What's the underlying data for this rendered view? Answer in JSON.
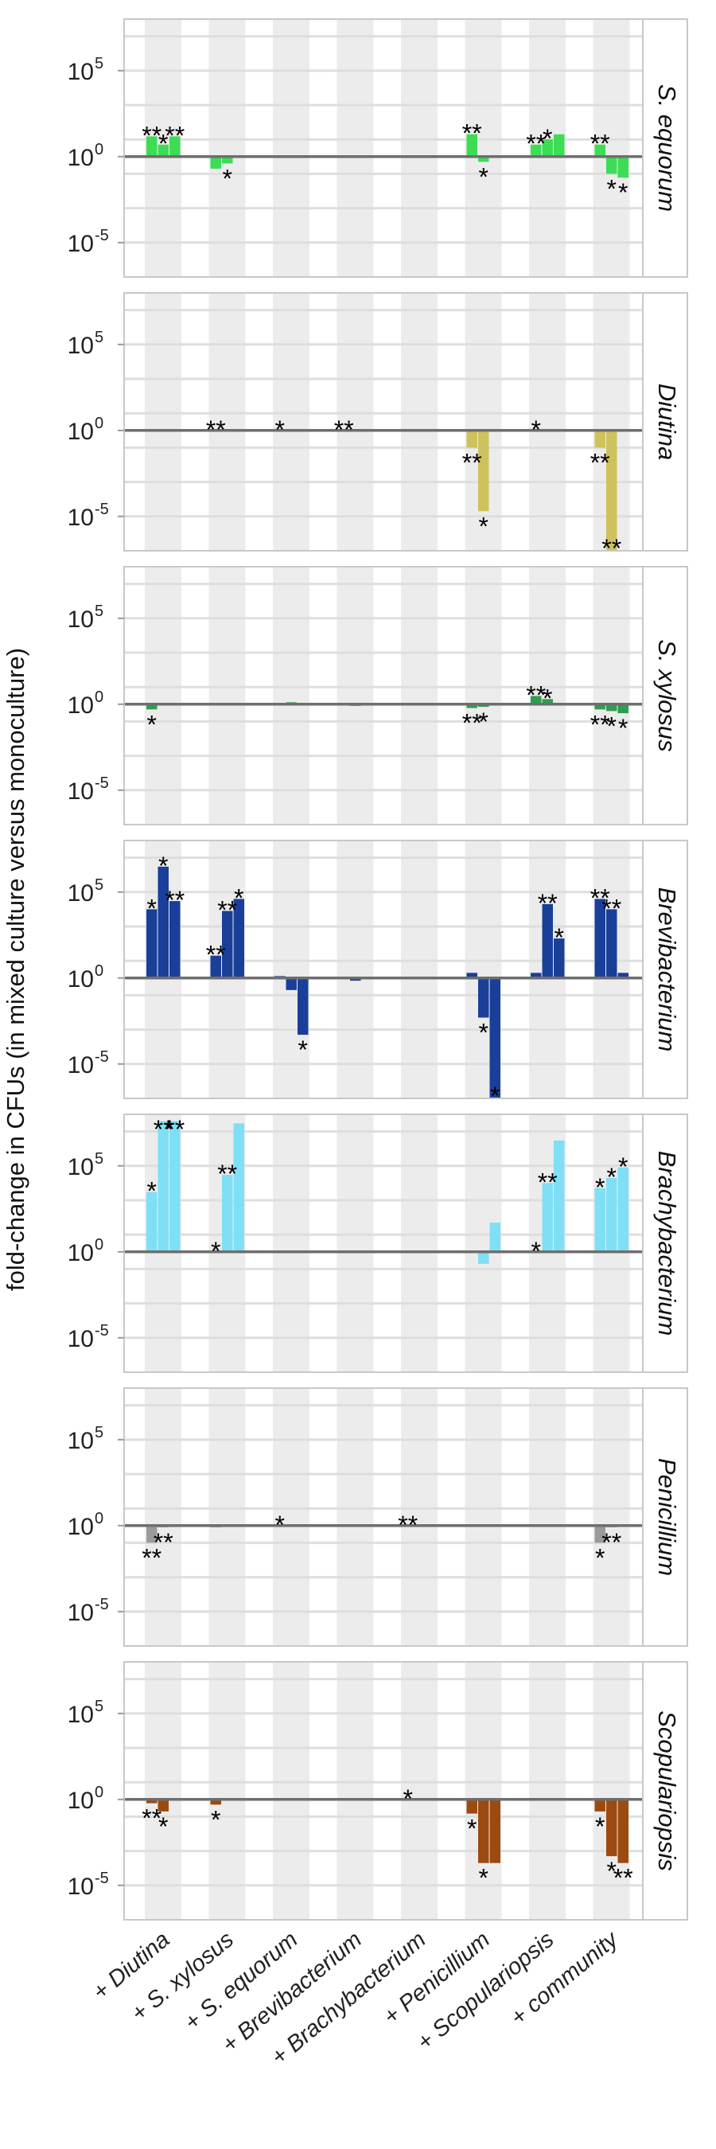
{
  "chart_data": {
    "type": "bar",
    "ylabel": "fold-change in CFUs (in mixed culture versus monoculture)",
    "y_scale": "log10",
    "ylim": [
      1e-07,
      100000000
    ],
    "yticks": [
      {
        "value": 1e-05,
        "base": "10",
        "exp": "-5"
      },
      {
        "value": 1,
        "base": "10",
        "exp": "0"
      },
      {
        "value": 100000,
        "base": "10",
        "exp": "5"
      }
    ],
    "categories": [
      "+ Diutina",
      "+ S. xylosus",
      "+ S. equorum",
      "+ Brevibacterium",
      "+ Brachybacterium",
      "+ Penicillium",
      "+ Scopulariopsis",
      "+ community"
    ],
    "panels": [
      {
        "name": "S. equorum",
        "color": "#3ddc55",
        "values": [
          [
            15,
            5,
            15
          ],
          [
            0.2,
            0.4,
            null
          ],
          [
            null,
            null,
            null
          ],
          [
            null,
            1.15,
            null
          ],
          [
            null,
            null,
            null
          ],
          [
            20,
            0.5,
            null
          ],
          [
            5,
            10,
            20
          ],
          [
            5,
            0.1,
            0.06
          ]
        ],
        "sig": [
          [
            "**",
            "*",
            "**"
          ],
          [
            "",
            "*",
            ""
          ],
          [
            "",
            "",
            ""
          ],
          [
            "",
            "",
            ""
          ],
          [
            "",
            "",
            ""
          ],
          [
            "**",
            "*",
            ""
          ],
          [
            "**",
            "*",
            ""
          ],
          [
            "**",
            "*",
            "*"
          ]
        ]
      },
      {
        "name": "Diutina",
        "color": "#cfc25d",
        "values": [
          [
            null,
            null,
            null
          ],
          [
            null,
            null,
            null
          ],
          [
            null,
            null,
            null
          ],
          [
            null,
            null,
            null
          ],
          [
            null,
            null,
            null
          ],
          [
            0.1,
            2e-05,
            null
          ],
          [
            null,
            null,
            null
          ],
          [
            0.1,
            1e-07,
            null
          ]
        ],
        "sig": [
          [
            "",
            "",
            ""
          ],
          [
            "**",
            "",
            ""
          ],
          [
            "*",
            "",
            ""
          ],
          [
            "**",
            "",
            ""
          ],
          [
            "",
            "",
            ""
          ],
          [
            "**",
            "*",
            ""
          ],
          [
            "*",
            "",
            ""
          ],
          [
            "**",
            "**",
            ""
          ]
        ]
      },
      {
        "name": "S. xylosus",
        "color": "#2e9e50",
        "values": [
          [
            0.5,
            null,
            null
          ],
          [
            null,
            null,
            null
          ],
          [
            null,
            1.3,
            null
          ],
          [
            null,
            0.8,
            null
          ],
          [
            null,
            null,
            null
          ],
          [
            0.6,
            0.7,
            null
          ],
          [
            3,
            2,
            null
          ],
          [
            0.5,
            0.4,
            0.3
          ]
        ],
        "sig": [
          [
            "*",
            "",
            ""
          ],
          [
            "",
            "",
            ""
          ],
          [
            "",
            "",
            ""
          ],
          [
            "",
            "",
            ""
          ],
          [
            "",
            "",
            ""
          ],
          [
            "**",
            "*",
            ""
          ],
          [
            "**",
            "*",
            ""
          ],
          [
            "**",
            "*",
            "*"
          ]
        ]
      },
      {
        "name": "Brevibacterium",
        "color": "#1a3f99",
        "values": [
          [
            10000,
            3000000,
            30000
          ],
          [
            20,
            8000,
            40000
          ],
          [
            1.3,
            0.2,
            0.0005
          ],
          [
            null,
            0.7,
            null
          ],
          [
            null,
            null,
            null
          ],
          [
            2,
            0.005,
            1e-07
          ],
          [
            2,
            20000,
            200
          ],
          [
            40000,
            10000,
            2
          ]
        ],
        "sig": [
          [
            "*",
            "*",
            "**"
          ],
          [
            "**",
            "**",
            "*"
          ],
          [
            "",
            "",
            "*"
          ],
          [
            "",
            "",
            ""
          ],
          [
            "",
            "",
            ""
          ],
          [
            "",
            "*",
            "*"
          ],
          [
            "",
            "**",
            "*"
          ],
          [
            "**",
            "**",
            ""
          ]
        ]
      },
      {
        "name": "Brachybacterium",
        "color": "#7fdff5",
        "values": [
          [
            3000,
            40000000,
            40000000
          ],
          [
            null,
            30000,
            30000000
          ],
          [
            null,
            1.2,
            null
          ],
          [
            null,
            1.2,
            null
          ],
          [
            null,
            null,
            null
          ],
          [
            null,
            0.2,
            50
          ],
          [
            null,
            10000,
            3000000
          ],
          [
            5000,
            20000,
            80000
          ]
        ],
        "sig": [
          [
            "*",
            "**",
            "**"
          ],
          [
            "*",
            "**",
            ""
          ],
          [
            "",
            "",
            ""
          ],
          [
            "",
            "",
            ""
          ],
          [
            "",
            "",
            ""
          ],
          [
            "",
            "",
            ""
          ],
          [
            "*",
            "**",
            ""
          ],
          [
            "*",
            "*",
            "*"
          ]
        ]
      },
      {
        "name": "Penicillium",
        "color": "#9b9b9b",
        "values": [
          [
            0.1,
            0.8,
            null
          ],
          [
            0.8,
            null,
            null
          ],
          [
            null,
            null,
            null
          ],
          [
            null,
            null,
            null
          ],
          [
            null,
            null,
            null
          ],
          [
            null,
            null,
            null
          ],
          [
            null,
            null,
            null
          ],
          [
            0.1,
            0.8,
            null
          ]
        ],
        "sig": [
          [
            "**",
            "**",
            ""
          ],
          [
            "",
            "",
            ""
          ],
          [
            "*",
            "",
            ""
          ],
          [
            "",
            "",
            ""
          ],
          [
            "**",
            "",
            ""
          ],
          [
            "",
            "",
            ""
          ],
          [
            "",
            "",
            ""
          ],
          [
            "*",
            "**",
            ""
          ]
        ]
      },
      {
        "name": "Scopulariopsis",
        "color": "#9c4a10",
        "values": [
          [
            0.6,
            0.2,
            null
          ],
          [
            0.5,
            null,
            null
          ],
          [
            null,
            null,
            null
          ],
          [
            null,
            null,
            null
          ],
          [
            null,
            null,
            null
          ],
          [
            0.15,
            0.0002,
            0.0002
          ],
          [
            null,
            null,
            null
          ],
          [
            0.2,
            0.0005,
            0.0002
          ]
        ],
        "sig": [
          [
            "**",
            "*",
            ""
          ],
          [
            "*",
            "",
            ""
          ],
          [
            "",
            "",
            ""
          ],
          [
            "",
            "",
            ""
          ],
          [
            "*",
            "",
            ""
          ],
          [
            "*",
            "*",
            ""
          ],
          [
            "",
            "",
            ""
          ],
          [
            "*",
            "*",
            "**"
          ]
        ]
      }
    ]
  }
}
